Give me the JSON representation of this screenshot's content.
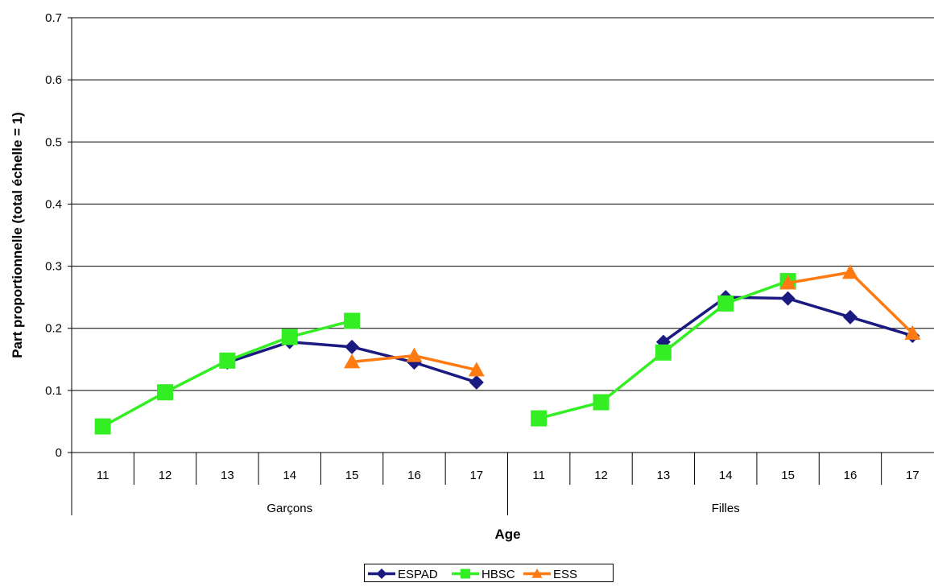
{
  "chart_data": {
    "type": "line",
    "title": "",
    "xlabel": "Age",
    "ylabel": "Part proportionnelle (total échelle = 1)",
    "ylim": [
      0,
      0.7
    ],
    "yticks": [
      "0",
      "0.1",
      "0.2",
      "0.3",
      "0.4",
      "0.5",
      "0.6",
      "0.7"
    ],
    "grid": true,
    "legend_position": "bottom",
    "groups": [
      {
        "label": "Garçons",
        "ages": [
          "11",
          "12",
          "13",
          "14",
          "15",
          "16",
          "17"
        ]
      },
      {
        "label": "Filles",
        "ages": [
          "11",
          "12",
          "13",
          "14",
          "15",
          "16",
          "17"
        ]
      }
    ],
    "categories": [
      "11",
      "12",
      "13",
      "14",
      "15",
      "16",
      "17",
      "11",
      "12",
      "13",
      "14",
      "15",
      "16",
      "17"
    ],
    "series": [
      {
        "name": "ESPAD",
        "color": "#1a1a80",
        "marker": "diamond",
        "values": [
          null,
          null,
          0.145,
          0.178,
          0.17,
          0.145,
          0.113,
          null,
          null,
          0.178,
          0.25,
          0.248,
          0.218,
          0.188
        ]
      },
      {
        "name": "HBSC",
        "color": "#33ee22",
        "marker": "square",
        "values": [
          0.042,
          0.097,
          0.148,
          0.186,
          0.212,
          null,
          null,
          0.055,
          0.081,
          0.161,
          0.24,
          0.276,
          null,
          null
        ]
      },
      {
        "name": "ESS",
        "color": "#ff7a10",
        "marker": "triangle",
        "values": [
          null,
          null,
          null,
          null,
          0.146,
          0.156,
          0.133,
          null,
          null,
          null,
          null,
          0.273,
          0.29,
          0.192
        ]
      }
    ]
  }
}
